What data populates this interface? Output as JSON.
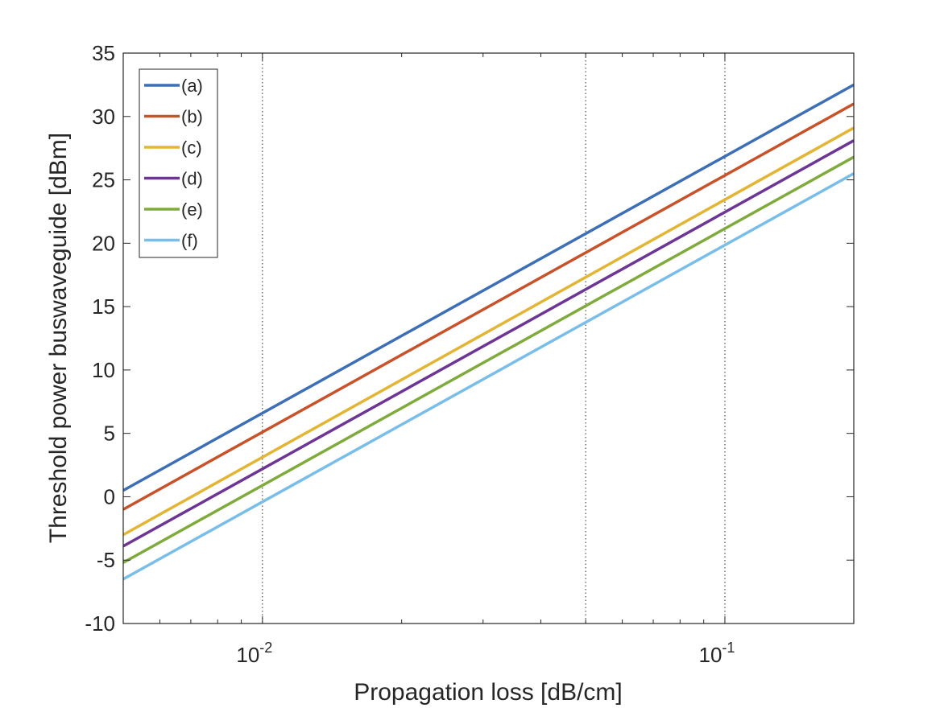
{
  "chart_data": {
    "type": "line",
    "title": "",
    "xlabel": "Propagation loss [dB/cm]",
    "ylabel": "Threshold power buswaveguide [dBm]",
    "xscale": "log",
    "xlim": [
      0.005,
      0.19
    ],
    "ylim": [
      -10,
      35
    ],
    "yticks": [
      -10,
      -5,
      0,
      5,
      10,
      15,
      20,
      25,
      30,
      35
    ],
    "ytick_labels": [
      "-10",
      "-5",
      "0",
      "5",
      "10",
      "15",
      "20",
      "25",
      "30",
      "35"
    ],
    "xticks": [
      {
        "value": 0.01,
        "base": "10",
        "exp": "-2"
      },
      {
        "value": 0.1,
        "base": "10",
        "exp": "-1"
      }
    ],
    "x_gridlines": [
      0.01,
      0.05,
      0.1
    ],
    "grid": "vertical-dotted",
    "legend_location": "top-left",
    "series": [
      {
        "name": "(a)",
        "color": "#3d6fb6",
        "x": [
          0.005,
          0.19
        ],
        "y": [
          0.5,
          32.5
        ]
      },
      {
        "name": "(b)",
        "color": "#c8522a",
        "x": [
          0.005,
          0.19
        ],
        "y": [
          -1.0,
          31.0
        ]
      },
      {
        "name": "(c)",
        "color": "#e3b534",
        "x": [
          0.005,
          0.19
        ],
        "y": [
          -3.0,
          29.1
        ]
      },
      {
        "name": "(d)",
        "color": "#6e3594",
        "x": [
          0.005,
          0.19
        ],
        "y": [
          -3.9,
          28.1
        ]
      },
      {
        "name": "(e)",
        "color": "#7fab3d",
        "x": [
          0.005,
          0.19
        ],
        "y": [
          -5.2,
          26.8
        ]
      },
      {
        "name": "(f)",
        "color": "#79bde9",
        "x": [
          0.005,
          0.19
        ],
        "y": [
          -6.5,
          25.5
        ]
      }
    ]
  }
}
